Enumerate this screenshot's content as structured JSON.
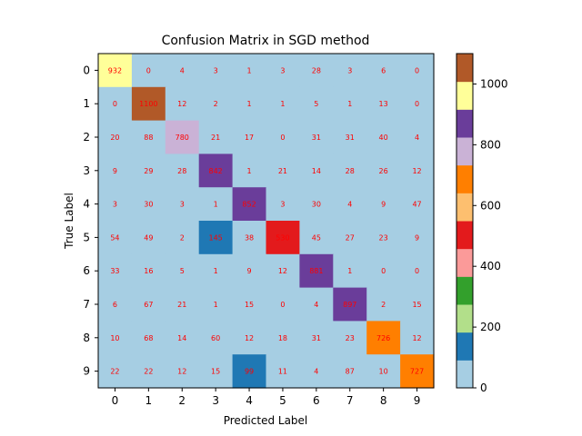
{
  "chart_data": {
    "type": "heatmap",
    "title": "Confusion Matrix in SGD method",
    "xlabel": "Predicted Label",
    "ylabel": "True Label",
    "x_labels": [
      "0",
      "1",
      "2",
      "3",
      "4",
      "5",
      "6",
      "7",
      "8",
      "9"
    ],
    "y_labels": [
      "0",
      "1",
      "2",
      "3",
      "4",
      "5",
      "6",
      "7",
      "8",
      "9"
    ],
    "matrix": [
      [
        932,
        0,
        4,
        3,
        1,
        3,
        28,
        3,
        6,
        0
      ],
      [
        0,
        1100,
        12,
        2,
        1,
        1,
        5,
        1,
        13,
        0
      ],
      [
        20,
        88,
        780,
        21,
        17,
        0,
        31,
        31,
        40,
        4
      ],
      [
        9,
        29,
        28,
        842,
        1,
        21,
        14,
        28,
        26,
        12
      ],
      [
        3,
        30,
        3,
        1,
        852,
        3,
        30,
        4,
        9,
        47
      ],
      [
        54,
        49,
        2,
        145,
        38,
        530,
        45,
        27,
        23,
        9
      ],
      [
        33,
        16,
        5,
        1,
        9,
        12,
        881,
        1,
        0,
        0
      ],
      [
        6,
        67,
        21,
        1,
        15,
        0,
        4,
        897,
        2,
        15
      ],
      [
        10,
        68,
        14,
        60,
        12,
        18,
        31,
        23,
        726,
        12
      ],
      [
        22,
        22,
        12,
        15,
        99,
        11,
        4,
        87,
        10,
        727
      ]
    ],
    "colormap": "Paired",
    "colormap_colors": [
      "#a6cee3",
      "#1f78b4",
      "#b2df8a",
      "#33a02c",
      "#fb9a99",
      "#e31a1c",
      "#fdbf6f",
      "#ff7f00",
      "#cab2d6",
      "#6a3d9a",
      "#ffff99",
      "#b15928"
    ],
    "value_range": [
      0,
      1100
    ],
    "annotation_color": "#ff0000",
    "colorbar_ticks": [
      "0",
      "200",
      "400",
      "600",
      "800",
      "1000"
    ]
  }
}
